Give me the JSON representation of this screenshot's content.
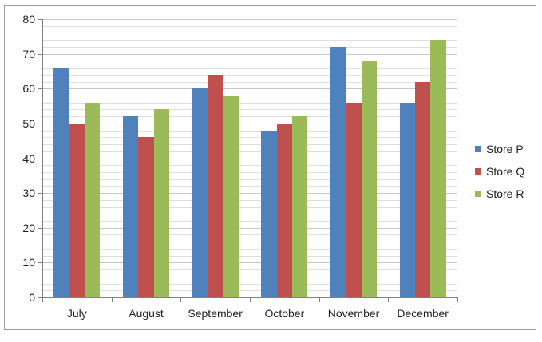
{
  "chart_data": {
    "type": "bar",
    "title": "",
    "categories": [
      "July",
      "August",
      "September",
      "October",
      "November",
      "December"
    ],
    "series": [
      {
        "name": "Store P",
        "color": "#4F81BD",
        "values": [
          66,
          52,
          60,
          48,
          72,
          56
        ]
      },
      {
        "name": "Store Q",
        "color": "#C0504D",
        "values": [
          50,
          46,
          64,
          50,
          56,
          62
        ]
      },
      {
        "name": "Store R",
        "color": "#9BBB59",
        "values": [
          56,
          54,
          58,
          52,
          68,
          74
        ]
      }
    ],
    "xlabel": "",
    "ylabel": "",
    "ylim": [
      0,
      80
    ],
    "y_ticks": [
      0,
      10,
      20,
      30,
      40,
      50,
      60,
      70,
      80
    ],
    "y_minor_step": 2,
    "grid": true,
    "gap_width_ratio": 1.5,
    "legend_position": "right",
    "legend_entries": [
      "Store P",
      "Store Q",
      "Store R"
    ]
  },
  "colors": {
    "grid_minor": "#DEDEDE",
    "grid_major": "#C6C6C6",
    "axis": "#808080",
    "frame_border": "#9C9C9C",
    "text": "#1F1F1F",
    "background": "#FFFFFF"
  }
}
